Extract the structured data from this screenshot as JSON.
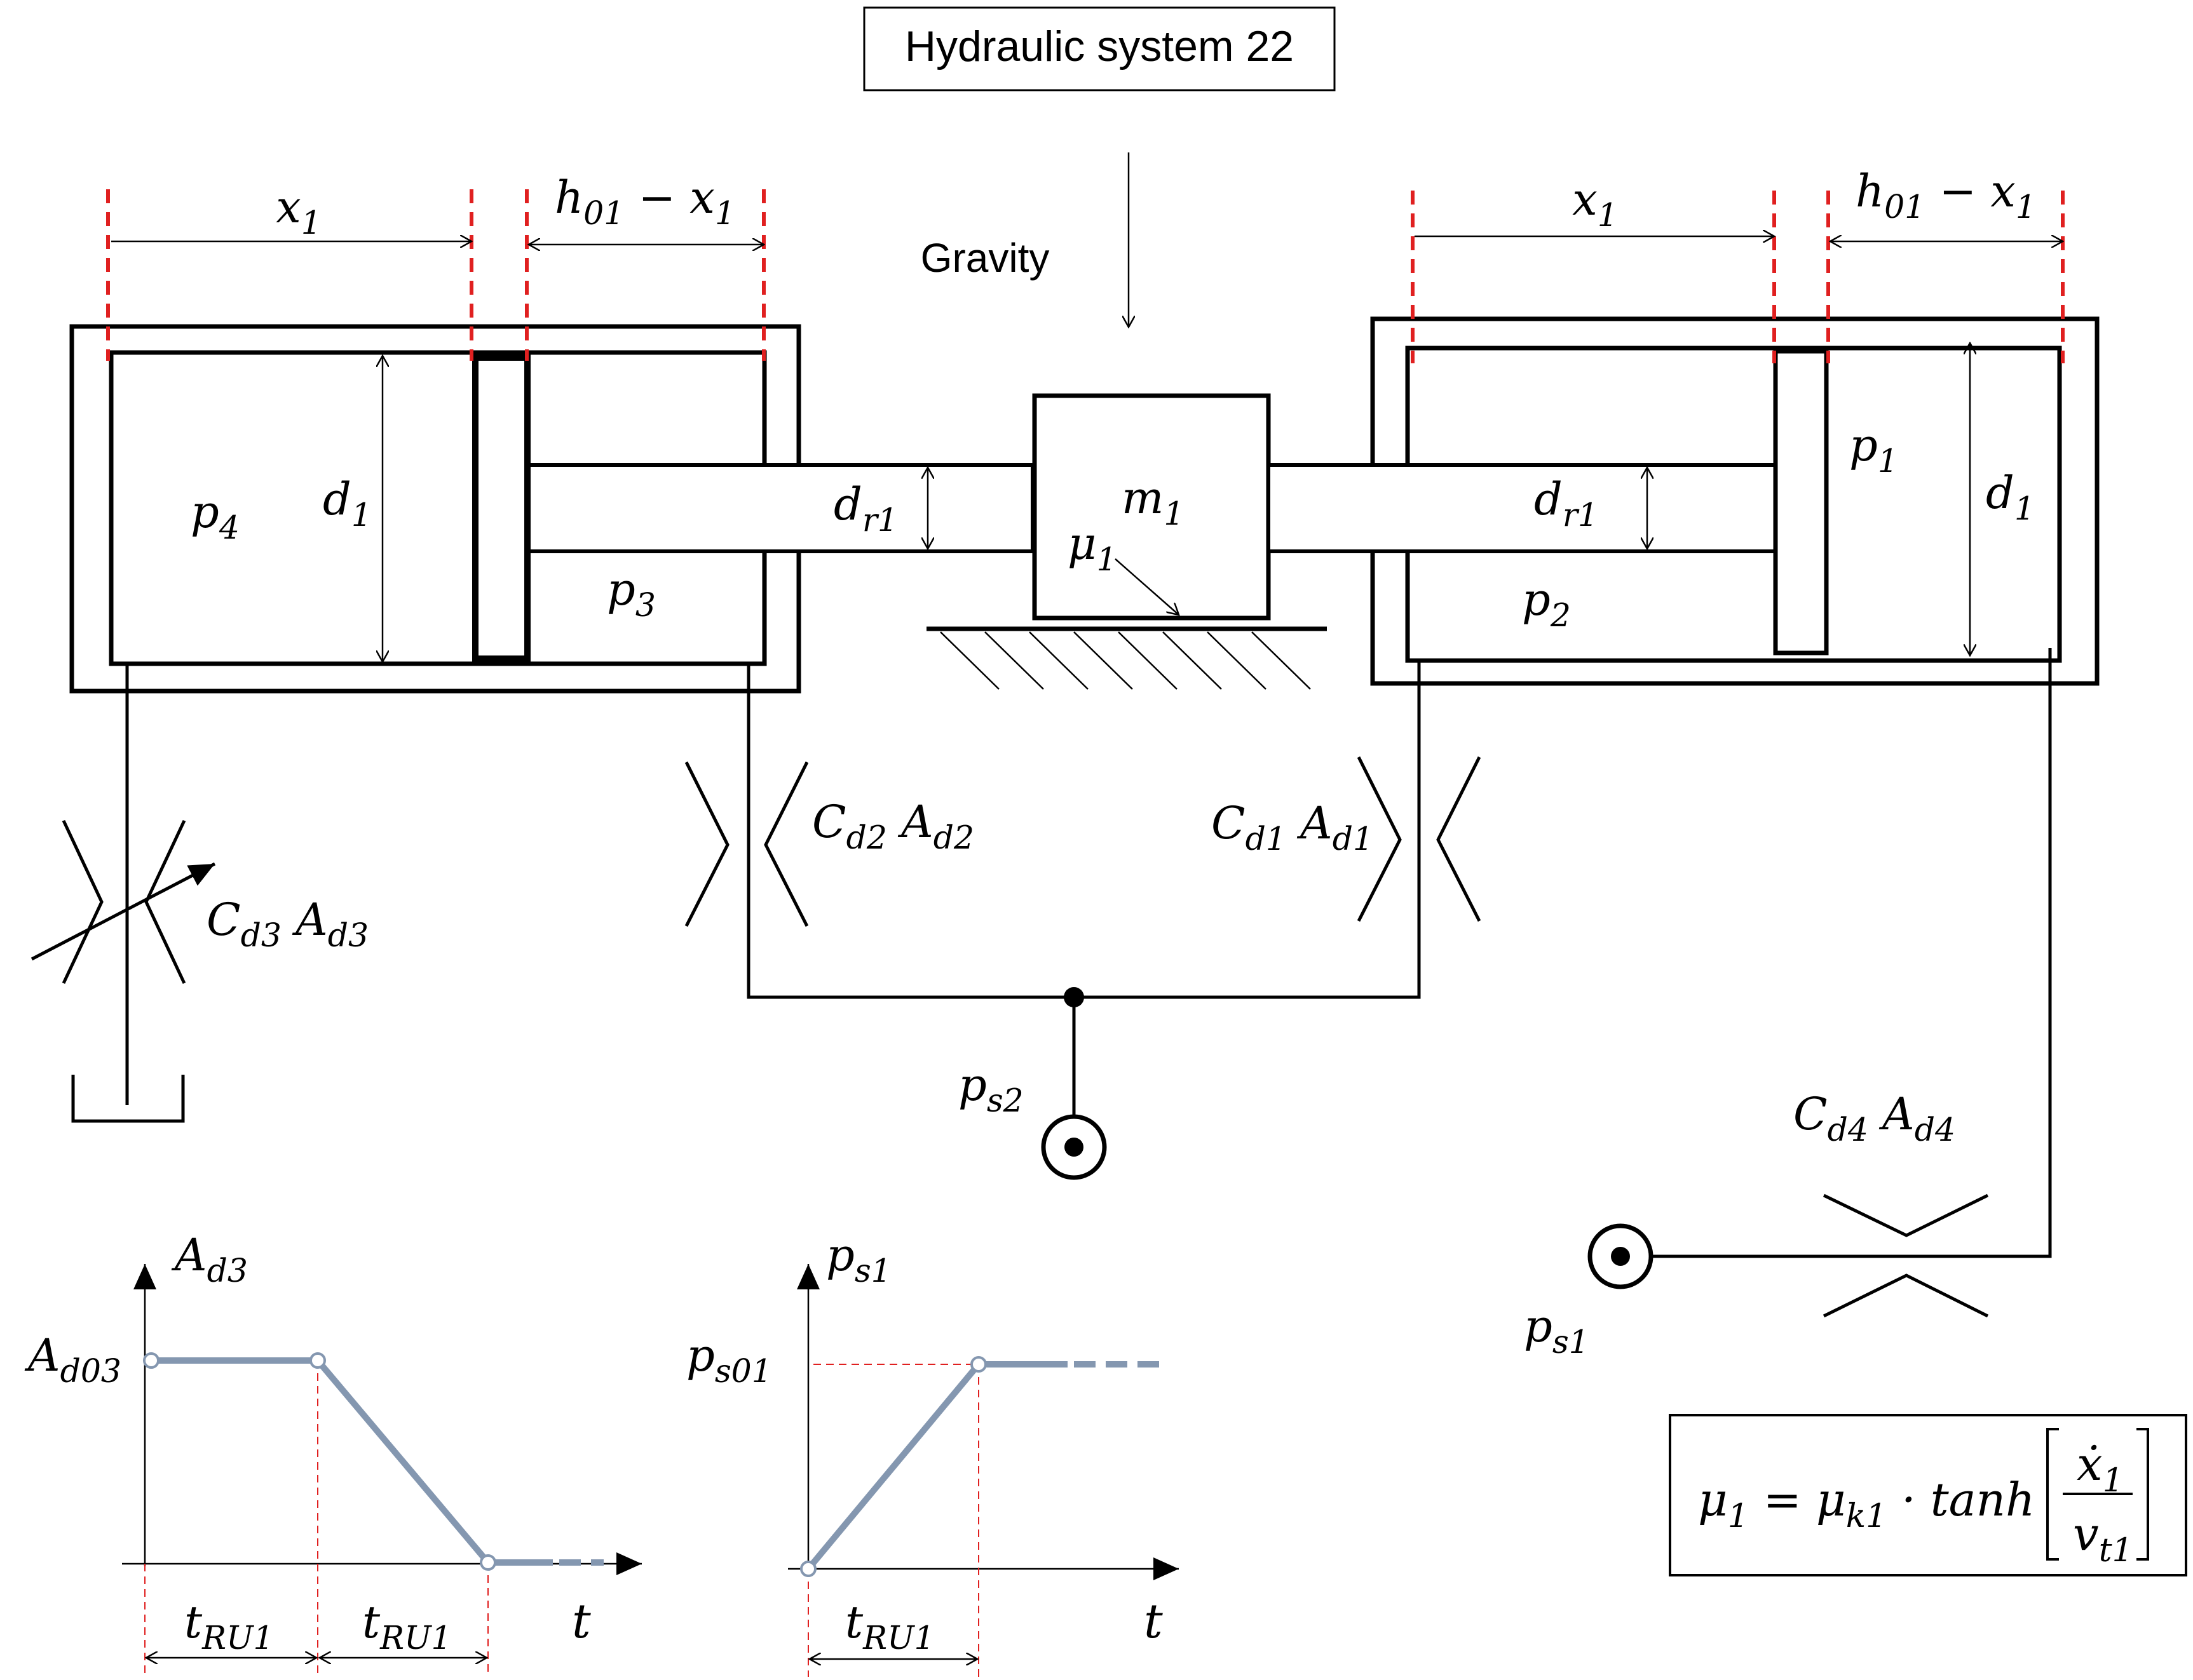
{
  "title": "Hydraulic system 22",
  "gravity_label": "Gravity",
  "left_cylinder": {
    "x_label": "x",
    "x_sub": "1",
    "h_label": "h",
    "h_sub": "01",
    "h_rest": " − x",
    "h_rest_sub": "1",
    "p4": "p",
    "p4_sub": "4",
    "p3": "p",
    "p3_sub": "3",
    "d1": "d",
    "d1_sub": "1",
    "dr1": "d",
    "dr1_sub": "r1"
  },
  "right_cylinder": {
    "x_label": "x",
    "x_sub": "1",
    "h_label": "h",
    "h_sub": "01",
    "h_rest": " − x",
    "h_rest_sub": "1",
    "p1": "p",
    "p1_sub": "1",
    "p2": "p",
    "p2_sub": "2",
    "d1": "d",
    "d1_sub": "1",
    "dr1": "d",
    "dr1_sub": "r1"
  },
  "mass": {
    "m": "m",
    "m_sub": "1",
    "mu": "μ",
    "mu_sub": "1"
  },
  "orifices": {
    "d1": {
      "c": "C",
      "c_sub": "d1",
      "a": "A",
      "a_sub": "d1"
    },
    "d2": {
      "c": "C",
      "c_sub": "d2",
      "a": "A",
      "a_sub": "d2"
    },
    "d3": {
      "c": "C",
      "c_sub": "d3",
      "a": "A",
      "a_sub": "d3"
    },
    "d4": {
      "c": "C",
      "c_sub": "d4",
      "a": "A",
      "a_sub": "d4"
    }
  },
  "sources": {
    "ps2": "p",
    "ps2_sub": "s2",
    "ps1": "p",
    "ps1_sub": "s1"
  },
  "formula": {
    "lhs": "μ",
    "lhs_sub": "1",
    "eq": " = ",
    "mu_k": "μ",
    "mu_k_sub": "k1",
    "dot_tanh": " · tanh",
    "num": "ẋ",
    "num_sub": "1",
    "den": "v",
    "den_sub": "t1"
  },
  "graph_ad3": {
    "y_axis": "A",
    "y_axis_sub": "d3",
    "y_value": "A",
    "y_value_sub": "d03",
    "x_axis": "t",
    "interval1": "t",
    "interval1_sub": "RU1",
    "interval2": "t",
    "interval2_sub": "RU1"
  },
  "graph_ps1": {
    "y_axis": "p",
    "y_axis_sub": "s1",
    "y_value": "p",
    "y_value_sub": "s01",
    "x_axis": "t",
    "interval1": "t",
    "interval1_sub": "RU1"
  },
  "colors": {
    "curve": "#8497b0",
    "guide": "#e02020",
    "line": "#000000"
  }
}
